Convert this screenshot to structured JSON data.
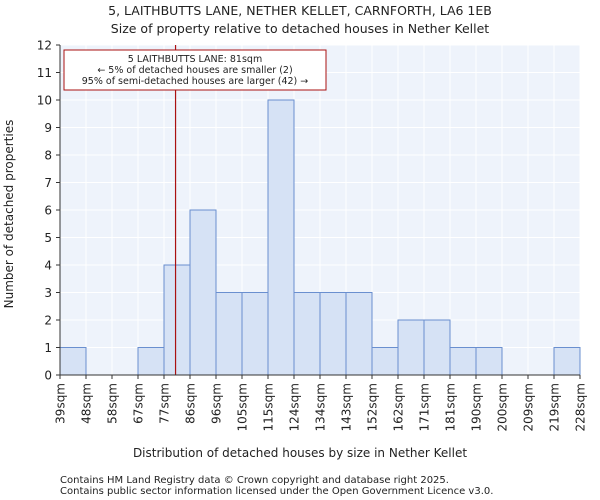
{
  "chart_data": {
    "type": "bar",
    "title": "5, LAITHBUTTS LANE, NETHER KELLET, CARNFORTH, LA6 1EB",
    "subtitle": "Size of property relative to detached houses in Nether Kellet",
    "xlabel": "Distribution of detached houses by size in Nether Kellet",
    "ylabel": "Number of detached properties",
    "ylim": [
      0,
      12
    ],
    "yticks": [
      "0",
      "1",
      "2",
      "3",
      "4",
      "5",
      "6",
      "7",
      "8",
      "9",
      "10",
      "11",
      "12"
    ],
    "bin_edges": [
      "39sqm",
      "48sqm",
      "58sqm",
      "67sqm",
      "77sqm",
      "86sqm",
      "96sqm",
      "105sqm",
      "115sqm",
      "124sqm",
      "134sqm",
      "143sqm",
      "152sqm",
      "162sqm",
      "171sqm",
      "181sqm",
      "190sqm",
      "200sqm",
      "209sqm",
      "219sqm",
      "228sqm"
    ],
    "values": [
      1,
      0,
      0,
      1,
      4,
      6,
      3,
      3,
      10,
      3,
      3,
      3,
      1,
      2,
      2,
      1,
      1,
      0,
      0,
      1
    ],
    "marker": {
      "value": 81,
      "color": "#aa1111",
      "annotation": [
        "5 LAITHBUTTS LANE: 81sqm",
        "← 5% of detached houses are smaller (2)",
        "95% of semi-detached houses are larger (42) →"
      ]
    },
    "colors": {
      "bar_fill": "#d6e2f5",
      "bar_stroke": "#6a8fcf",
      "plot_bg": "#eef3fb",
      "grid": "#ffffff"
    }
  },
  "footer": {
    "line1": "Contains HM Land Registry data © Crown copyright and database right 2025.",
    "line2": "Contains public sector information licensed under the Open Government Licence v3.0."
  }
}
